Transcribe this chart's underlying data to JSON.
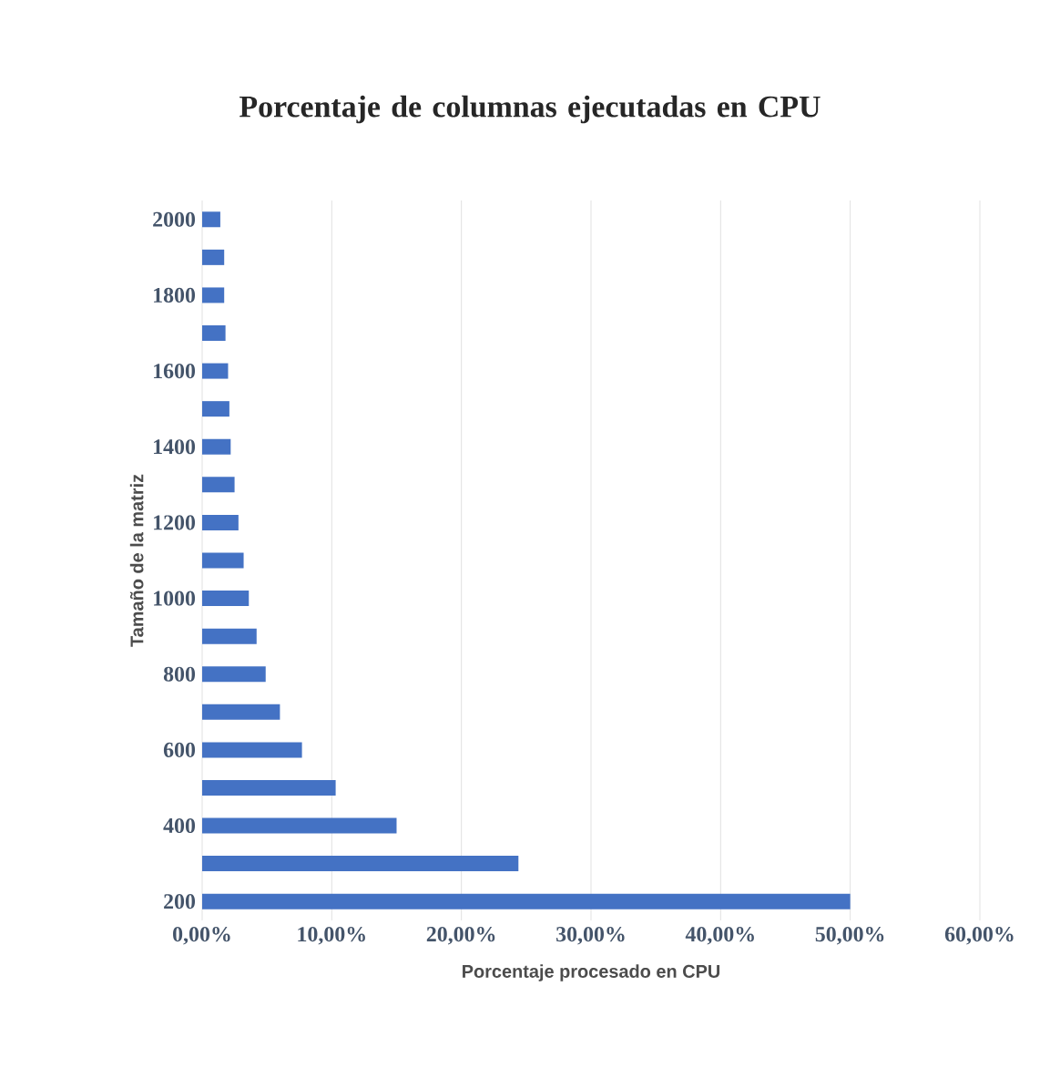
{
  "chart_data": {
    "type": "bar",
    "orientation": "horizontal",
    "title": "Porcentaje de columnas ejecutadas en CPU",
    "xlabel": "Porcentaje procesado en CPU",
    "ylabel": "Tamaño de la matriz",
    "categories": [
      "2000",
      null,
      "1800",
      null,
      "1600",
      null,
      "1400",
      null,
      "1200",
      null,
      "1000",
      null,
      "800",
      null,
      "600",
      null,
      "400",
      null,
      "200"
    ],
    "values": [
      1.4,
      1.7,
      1.7,
      1.8,
      2.0,
      2.1,
      2.2,
      2.5,
      2.8,
      3.2,
      3.6,
      4.2,
      4.9,
      6.0,
      7.7,
      10.3,
      15.0,
      24.4,
      50.0
    ],
    "color": "#4472c4",
    "xlim": [
      0,
      60
    ],
    "xticks": [
      {
        "value": 0,
        "label": "0,00%"
      },
      {
        "value": 10,
        "label": "10,00%"
      },
      {
        "value": 20,
        "label": "20,00%"
      },
      {
        "value": 30,
        "label": "30,00%"
      },
      {
        "value": 40,
        "label": "40,00%"
      },
      {
        "value": 50,
        "label": "50,00%"
      },
      {
        "value": 60,
        "label": "60,00%"
      }
    ],
    "grid": "x"
  }
}
